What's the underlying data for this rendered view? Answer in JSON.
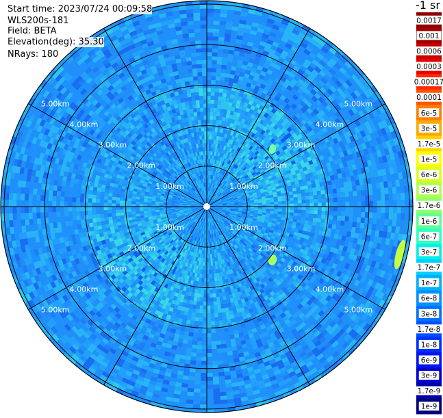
{
  "info": {
    "start_time": "Start time: 2023/07/24 00:09:58",
    "instrument": "WLS200s-181",
    "field": "Field: BETA",
    "elevation_label": "Elevation(deg): ",
    "elevation_value": "35.30",
    "nrays": "NRays: 180"
  },
  "chart_data": {
    "type": "heatmap",
    "projection": "polar (PPI)",
    "field": "BETA",
    "unit": "-1 sr",
    "range_rings_km": [
      1,
      2,
      3,
      4,
      5
    ],
    "ring_labels": [
      "1.00km",
      "2.00km",
      "3.00km",
      "4.00km",
      "5.00km"
    ],
    "radial_line_step_deg": 30,
    "n_rays": 180,
    "max_range_km": 6.3,
    "colorbar": {
      "labels": [
        "0.0017",
        "0.001",
        "0.0006",
        "0.0003",
        "0.00017",
        "0.0001",
        "6e-5",
        "3e-5",
        "1.7e-5",
        "1e-5",
        "6e-6",
        "3e-6",
        "1.7e-6",
        "1e-6",
        "6e-7",
        "3e-7",
        "1.7e-7",
        "1e-7",
        "6e-8",
        "3e-8",
        "1.7e-8",
        "1e-8",
        "6e-9",
        "3e-9",
        "1.7e-9",
        "1e-9"
      ],
      "colors": [
        "#8b0000",
        "#a00000",
        "#c80000",
        "#e80000",
        "#ff2a00",
        "#ff5500",
        "#ff8000",
        "#ffaa00",
        "#ffd200",
        "#ffff00",
        "#d8ff20",
        "#b0ff50",
        "#90ff70",
        "#60ff90",
        "#30ffc0",
        "#00f0e8",
        "#00d0ff",
        "#00b0ff",
        "#0090ff",
        "#0070ff",
        "#0050ff",
        "#0030ff",
        "#0018f0",
        "#0000d0",
        "#0000a8",
        "#000080"
      ]
    },
    "background_level": "6e-8 to 1e-7",
    "features": [
      {
        "description": "inner ring of elevated backscatter",
        "level": "1.7e-7 to 3e-7",
        "range_km": [
          1.0,
          3.0
        ]
      },
      {
        "description": "patches near east edge",
        "level": "1e-6 to 3e-6",
        "range_km": [
          5.5,
          6.2
        ]
      }
    ]
  }
}
